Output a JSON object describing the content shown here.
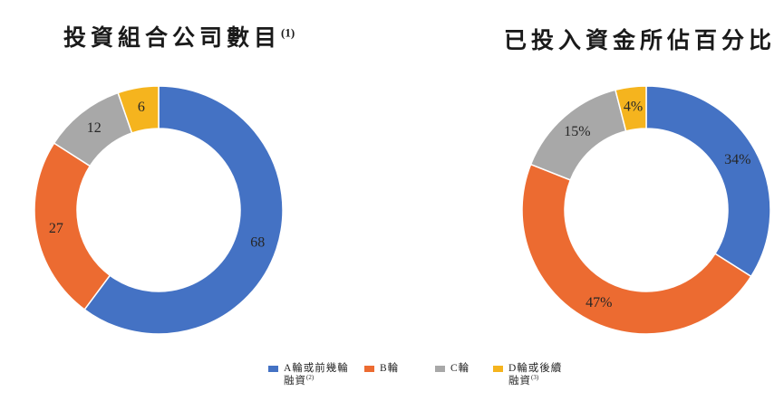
{
  "page": {
    "background_color": "#ffffff",
    "label_text_color": "#262626"
  },
  "chart_data": [
    {
      "type": "pie",
      "subtype": "donut",
      "title": "投資組合公司數目",
      "title_superscript": "(1)",
      "categories": [
        "A輪或前幾輪融資(2)",
        "B輪",
        "C輪",
        "D輪或後續融資(3)"
      ],
      "values": [
        68,
        27,
        12,
        6
      ],
      "labels": [
        "68",
        "27",
        "12",
        "6"
      ],
      "colors": [
        "#4472C4",
        "#EC6B31",
        "#A8A8A8",
        "#F5B41E"
      ],
      "start_angle_deg": 0,
      "direction": "clockwise",
      "hole_ratio": 0.66,
      "legend_position": "bottom-shared"
    },
    {
      "type": "pie",
      "subtype": "donut",
      "title": "已投入資金所佔百分比",
      "title_superscript": "",
      "categories": [
        "A輪或前幾輪融資(2)",
        "B輪",
        "C輪",
        "D輪或後續融資(3)"
      ],
      "values": [
        34,
        47,
        15,
        4
      ],
      "labels": [
        "34%",
        "47%",
        "15%",
        "4%"
      ],
      "colors": [
        "#4472C4",
        "#EC6B31",
        "#A8A8A8",
        "#F5B41E"
      ],
      "start_angle_deg": 0,
      "direction": "clockwise",
      "hole_ratio": 0.66,
      "legend_position": "bottom-shared"
    }
  ],
  "legend": {
    "items": [
      {
        "line1": "A輪或前幾輪",
        "line2": "融資",
        "superscript": "(2)",
        "color": "#4472C4"
      },
      {
        "line1": "B輪",
        "line2": "",
        "superscript": "",
        "color": "#EC6B31"
      },
      {
        "line1": "C輪",
        "line2": "",
        "superscript": "",
        "color": "#A8A8A8"
      },
      {
        "line1": "D輪或後續",
        "line2": "融資",
        "superscript": "(3)",
        "color": "#F5B41E"
      }
    ]
  }
}
